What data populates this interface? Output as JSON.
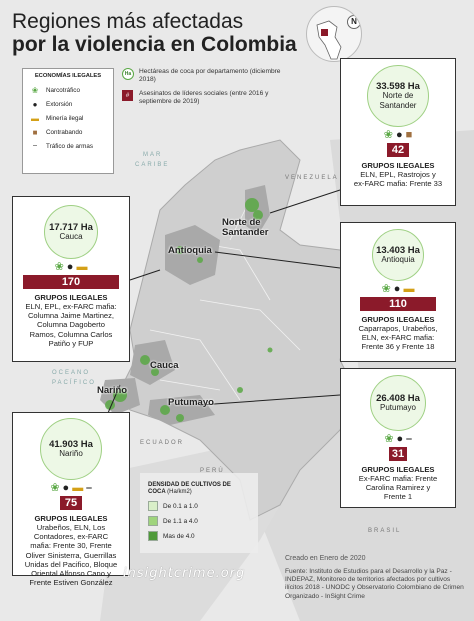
{
  "title": {
    "line1": "Regiones más afectadas",
    "line2": "por la violencia en Colombia"
  },
  "compass": {
    "north": "N"
  },
  "legend": {
    "heading": "ECONOMÍAS ILEGALES",
    "items": [
      {
        "label": "Narcotráfico",
        "icon": "coca-leaf-icon"
      },
      {
        "label": "Extorsión",
        "icon": "money-bag-icon"
      },
      {
        "label": "Minería ilegal",
        "icon": "gold-bars-icon"
      },
      {
        "label": "Contrabando",
        "icon": "box-icon"
      },
      {
        "label": "Tráfico de armas",
        "icon": "rifle-icon"
      }
    ],
    "ha_badge": "Ha",
    "coca_note": "Hectáreas de coca por departamento (diciembre 2018)",
    "leaders_note": "Asesinatos de líderes sociales (entre 2016 y septiembre de 2019)",
    "leaders_symbol": "#"
  },
  "geo_labels": {
    "mar": "MAR",
    "caribe": "CARIBE",
    "oceano": "OCEANO",
    "pacifico": "PACÍFICO",
    "venezuela": "VENEZUELA",
    "ecuador": "ECUADOR",
    "peru": "PERÚ",
    "brasil": "BRASIL"
  },
  "map_labels": {
    "norte_santander": [
      "Norte de",
      "Santander"
    ],
    "antioquia": "Antioquia",
    "cauca": "Cauca",
    "narino": "Nariño",
    "putumayo": "Putumayo"
  },
  "panels": {
    "norte_santander": {
      "ha": "33.598 Ha",
      "dept": [
        "Norte de",
        "Santander"
      ],
      "count": "42",
      "icons": [
        "coca-leaf-icon",
        "money-bag-icon",
        "box-icon"
      ],
      "groups_title": "GRUPOS ILEGALES",
      "groups": [
        "ELN, EPL, Rastrojos y",
        "ex-FARC mafia: Frente 33"
      ]
    },
    "cauca": {
      "ha": "17.717 Ha",
      "dept": [
        "Cauca"
      ],
      "count": "170",
      "icons": [
        "coca-leaf-icon",
        "money-bag-icon",
        "gold-bars-icon"
      ],
      "groups_title": "GRUPOS ILEGALES",
      "groups": [
        "ELN, EPL, ex-FARC mafia:",
        "Columna Jaime Martinez,",
        "Columna Dagoberto",
        "Ramos, Columna Carlos",
        "Patiño y FUP"
      ]
    },
    "antioquia": {
      "ha": "13.403 Ha",
      "dept": [
        "Antioquia"
      ],
      "count": "110",
      "icons": [
        "coca-leaf-icon",
        "money-bag-icon",
        "gold-bars-icon"
      ],
      "groups_title": "GRUPOS ILEGALES",
      "groups": [
        "Caparrapos, Urabeños,",
        "ELN, ex-FARC mafia:",
        "Frente 36 y Frente 18"
      ]
    },
    "putumayo": {
      "ha": "26.408 Ha",
      "dept": [
        "Putumayo"
      ],
      "count": "31",
      "icons": [
        "coca-leaf-icon",
        "money-bag-icon",
        "rifle-icon"
      ],
      "groups_title": "GRUPOS ILEGALES",
      "groups": [
        "Ex-FARC mafia: Frente",
        "Carolina Ramirez y",
        "Frente 1"
      ]
    },
    "narino": {
      "ha": "41.903 Ha",
      "dept": [
        "Nariño"
      ],
      "count": "75",
      "icons": [
        "coca-leaf-icon",
        "money-bag-icon",
        "gold-bars-icon",
        "rifle-icon"
      ],
      "groups_title": "GRUPOS ILEGALES",
      "groups": [
        "Urabeños, ELN, Los",
        "Contadores, ex-FARC",
        "mafia: Frente 30, Frente",
        "Oliver Sinisterra, Guerrillas",
        "Unidas del Pacifico, Bloque",
        "Oriental Alfonso Cano y",
        "Frente Estiven González"
      ]
    }
  },
  "density": {
    "title": "DENSIDAD DE CULTIVOS DE COCA",
    "unit": "(Ha/km2)",
    "ranges": [
      {
        "label": "De 0.1 a 1.0",
        "color": "#d9efc8"
      },
      {
        "label": "De 1.1 a 4.0",
        "color": "#9fd47c"
      },
      {
        "label": "Mas de 4.0",
        "color": "#4f9a3a"
      }
    ]
  },
  "footer": {
    "created": "Creado en Enero de 2020",
    "source": "Fuente: Instituto de Estudios para el Desarrollo y la Paz - INDEPAZ, Monitoreo de territorios afectados por cultivos ilícitos 2018 - UNODC y Observatorio Colombiano de Crimen Organizado - InSight Crime",
    "brand": "insightcrime.org"
  },
  "colors": {
    "accent": "#8b1a2a",
    "coca": "#5aa845",
    "land": "#d6d6d6",
    "sea": "#e9e9e9"
  }
}
